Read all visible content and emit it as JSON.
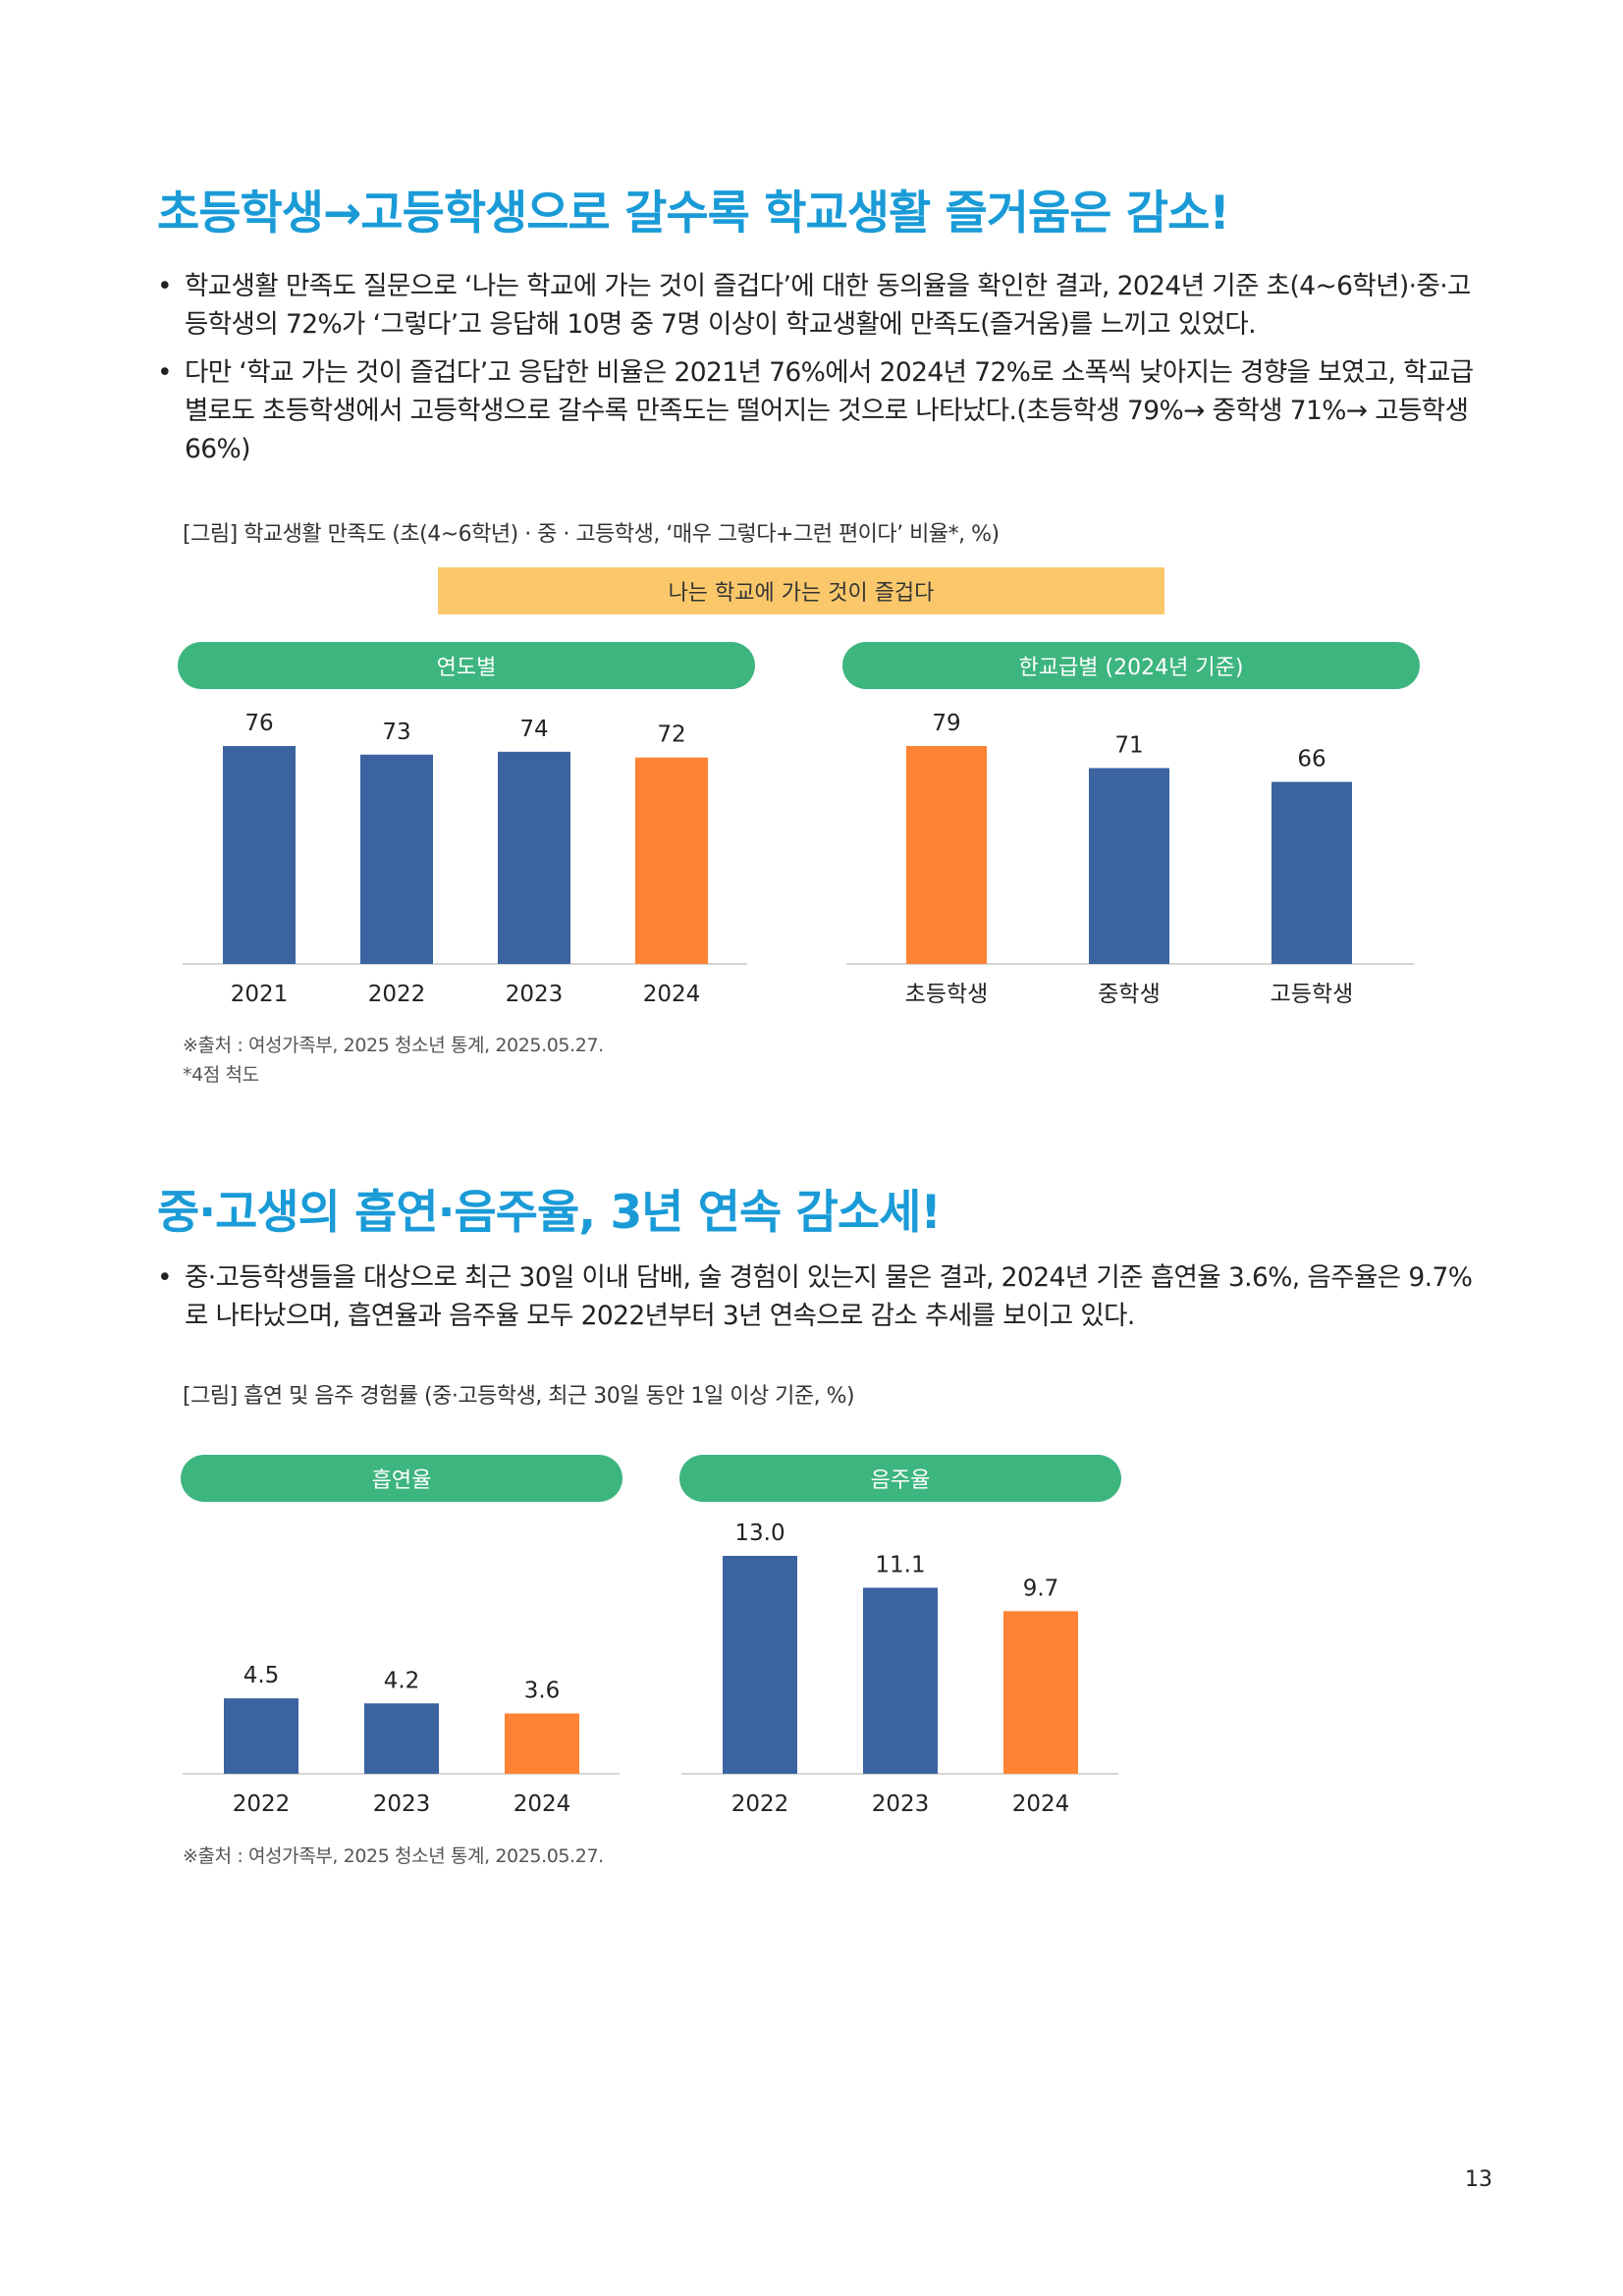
{
  "section1": {
    "title": "초등학생→고등학생으로 갈수록 학교생활 즐거움은 감소!",
    "bullets": [
      "학교생활 만족도 질문으로 ‘나는 학교에 가는 것이 즐겁다’에 대한 동의율을 확인한 결과, 2024년 기준 초(4~6학년)·중·고등학생의 72%가 ‘그렇다’고 응답해 10명 중 7명 이상이 학교생활에 만족도(즐거움)를 느끼고 있었다.",
      "다만 ‘학교 가는 것이 즐겁다’고 응답한 비율은 2021년 76%에서 2024년 72%로 소폭씩 낮아지는 경향을 보였고, 학교급별로도 초등학생에서 고등학생으로 갈수록 만족도는 떨어지는 것으로 나타났다.(초등학생 79%→ 중학생 71%→ 고등학생 66%)"
    ],
    "caption": "[그림] 학교생활 만족도 (초(4~6학년) · 중 · 고등학생, ‘매우 그렇다+그런 편이다’ 비율*, %)",
    "banner": "나는 학교에 가는 것이 즐겁다",
    "source_lines": [
      "※출처 : 여성가족부, 2025 청소년 통계, 2025.05.27.",
      "*4점 척도"
    ]
  },
  "section2": {
    "title": "중·고생의 흡연·음주율, 3년 연속 감소세!",
    "bullets": [
      "중·고등학생들을 대상으로 최근 30일 이내 담배, 술 경험이 있는지 물은 결과, 2024년 기준 흡연율 3.6%, 음주율은 9.7%로 나타났으며, 흡연율과 음주율 모두 2022년부터 3년 연속으로 감소 추세를 보이고 있다."
    ],
    "caption": "[그림] 흡연 및 음주 경험률 (중·고등학생, 최근 30일 동안 1일 이상 기준, %)",
    "source_lines": [
      "※출처 : 여성가족부, 2025 청소년 통계, 2025.05.27."
    ]
  },
  "page_number": "13",
  "colors": {
    "heading": "#1a9bd7",
    "bar_blue": "#3a63a0",
    "bar_orange": "#fe8334",
    "pill_green": "#3db57f",
    "banner_yellow": "#fac86b"
  },
  "chart_data": [
    {
      "type": "bar",
      "title": "연도별",
      "categories": [
        "2021",
        "2022",
        "2023",
        "2024"
      ],
      "values": [
        76,
        73,
        74,
        72
      ],
      "labels": [
        "76",
        "73",
        "74",
        "72"
      ],
      "highlight_index": 3,
      "ylim": [
        0,
        76
      ]
    },
    {
      "type": "bar",
      "title": "한교급별 (2024년 기준)",
      "categories": [
        "초등학생",
        "중학생",
        "고등학생"
      ],
      "values": [
        79,
        71,
        66
      ],
      "labels": [
        "79",
        "71",
        "66"
      ],
      "highlight_index": 0,
      "ylim": [
        0,
        79
      ]
    },
    {
      "type": "bar",
      "title": "흡연율",
      "categories": [
        "2022",
        "2023",
        "2024"
      ],
      "values": [
        4.5,
        4.2,
        3.6
      ],
      "labels": [
        "4.5",
        "4.2",
        "3.6"
      ],
      "highlight_index": 2,
      "ylim": [
        0,
        13
      ]
    },
    {
      "type": "bar",
      "title": "음주율",
      "categories": [
        "2022",
        "2023",
        "2024"
      ],
      "values": [
        13.0,
        11.1,
        9.7
      ],
      "labels": [
        "13.0",
        "11.1",
        "9.7"
      ],
      "highlight_index": 2,
      "ylim": [
        0,
        13
      ]
    }
  ]
}
